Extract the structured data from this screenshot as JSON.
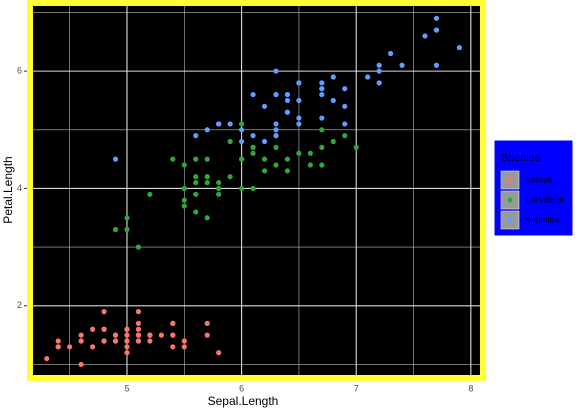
{
  "chart_data": {
    "type": "scatter",
    "x_label": "Sepal.Length",
    "y_label": "Petal.Length",
    "legend_title": "Species",
    "xlim": [
      4.18,
      8.08
    ],
    "ylim": [
      0.82,
      7.11
    ],
    "xticks": [
      5,
      6,
      7,
      8
    ],
    "yticks": [
      2,
      4,
      6
    ],
    "grid": true,
    "legend_position": "right",
    "series": [
      {
        "name": "setosa",
        "color": "#F8766D",
        "x": [
          5.1,
          4.9,
          4.7,
          4.6,
          5.0,
          5.4,
          4.6,
          5.0,
          4.4,
          4.9,
          5.4,
          4.8,
          4.8,
          4.3,
          5.8,
          5.7,
          5.4,
          5.1,
          5.7,
          5.1,
          5.4,
          5.1,
          4.6,
          5.1,
          4.8,
          5.0,
          5.0,
          5.2,
          5.2,
          4.7,
          4.8,
          5.4,
          5.2,
          5.5,
          4.9,
          5.0,
          5.5,
          4.9,
          4.4,
          5.1,
          5.0,
          4.5,
          4.4,
          5.0,
          5.1,
          4.8,
          5.1,
          4.6,
          5.3,
          5.0
        ],
        "y": [
          1.4,
          1.4,
          1.3,
          1.5,
          1.4,
          1.7,
          1.4,
          1.5,
          1.4,
          1.5,
          1.5,
          1.6,
          1.4,
          1.1,
          1.2,
          1.5,
          1.3,
          1.4,
          1.7,
          1.5,
          1.7,
          1.5,
          1.0,
          1.7,
          1.9,
          1.6,
          1.6,
          1.5,
          1.4,
          1.6,
          1.6,
          1.5,
          1.5,
          1.4,
          1.5,
          1.2,
          1.3,
          1.4,
          1.3,
          1.5,
          1.3,
          1.3,
          1.3,
          1.6,
          1.9,
          1.4,
          1.6,
          1.4,
          1.5,
          1.4
        ]
      },
      {
        "name": "versicolor",
        "color": "#2FA83A",
        "x": [
          7.0,
          6.4,
          6.9,
          5.5,
          6.5,
          5.7,
          6.3,
          4.9,
          6.6,
          5.2,
          5.0,
          5.9,
          6.0,
          6.1,
          5.6,
          6.7,
          5.6,
          5.8,
          6.2,
          5.6,
          5.9,
          6.1,
          6.3,
          6.1,
          6.4,
          6.6,
          6.8,
          6.7,
          6.0,
          5.7,
          5.5,
          5.5,
          5.8,
          6.0,
          5.4,
          6.0,
          6.7,
          6.3,
          5.6,
          5.5,
          5.5,
          6.1,
          5.8,
          5.0,
          5.6,
          5.7,
          5.7,
          6.2,
          5.1,
          5.7
        ],
        "y": [
          4.7,
          4.5,
          4.9,
          4.0,
          4.6,
          4.5,
          4.7,
          3.3,
          4.6,
          3.9,
          3.5,
          4.2,
          4.0,
          4.7,
          3.6,
          4.4,
          4.5,
          4.1,
          4.5,
          3.9,
          4.8,
          4.0,
          4.9,
          4.7,
          4.3,
          4.4,
          4.8,
          5.0,
          4.5,
          3.5,
          3.8,
          3.7,
          3.9,
          5.1,
          4.5,
          4.5,
          4.7,
          4.4,
          4.1,
          4.0,
          4.4,
          4.6,
          4.0,
          3.3,
          4.2,
          4.2,
          4.2,
          4.3,
          3.0,
          4.1
        ]
      },
      {
        "name": "virginica",
        "color": "#619CFF",
        "x": [
          6.3,
          5.8,
          7.1,
          6.3,
          6.5,
          7.6,
          4.9,
          7.3,
          6.7,
          7.2,
          6.5,
          6.4,
          6.8,
          5.7,
          5.8,
          6.4,
          6.5,
          7.7,
          7.7,
          6.0,
          6.9,
          5.6,
          7.7,
          6.3,
          6.7,
          7.2,
          6.2,
          6.1,
          6.4,
          7.2,
          7.4,
          7.9,
          6.4,
          6.3,
          6.1,
          7.7,
          6.3,
          6.4,
          6.0,
          6.9,
          6.7,
          6.9,
          5.8,
          6.8,
          6.7,
          6.7,
          6.3,
          6.5,
          6.2,
          5.9
        ],
        "y": [
          6.0,
          5.1,
          5.9,
          5.6,
          5.8,
          6.6,
          4.5,
          6.3,
          5.8,
          6.1,
          5.1,
          5.3,
          5.5,
          5.0,
          5.1,
          5.3,
          5.5,
          6.7,
          6.9,
          5.0,
          5.7,
          4.9,
          6.7,
          4.9,
          5.7,
          6.0,
          4.8,
          4.9,
          5.6,
          5.8,
          6.1,
          6.4,
          5.6,
          5.1,
          5.6,
          6.1,
          5.6,
          5.5,
          4.8,
          5.4,
          5.6,
          5.1,
          5.1,
          5.9,
          5.7,
          5.2,
          5.0,
          5.2,
          5.4,
          5.1
        ]
      }
    ]
  }
}
